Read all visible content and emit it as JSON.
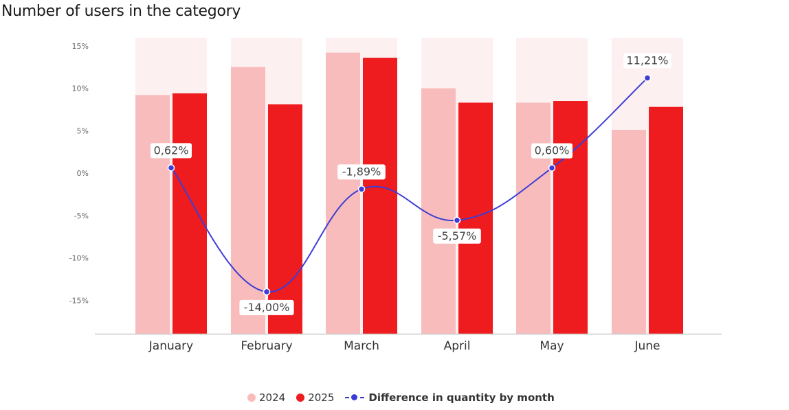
{
  "title": "Number of users in the category",
  "colors": {
    "s2024": "#f9bcbc",
    "s2025": "#ee1c1e",
    "line": "#3d3dd6",
    "bg_band": "#fdf0f0",
    "axis": "#cccccc"
  },
  "chart_data": {
    "type": "bar",
    "categories": [
      "January",
      "February",
      "March",
      "April",
      "May",
      "June"
    ],
    "ylim": [
      -19,
      15.5
    ],
    "yticks": [
      "15%",
      "10%",
      "5%",
      "0%",
      "-5%",
      "-10%",
      "-15%"
    ],
    "ytick_values": [
      15,
      10,
      5,
      0,
      -5,
      -10,
      -15
    ],
    "series": [
      {
        "name": "2024",
        "type": "bar",
        "values": [
          9.2,
          12.5,
          14.2,
          10.0,
          8.3,
          5.1
        ]
      },
      {
        "name": "2025",
        "type": "bar",
        "values": [
          9.4,
          8.1,
          13.6,
          8.3,
          8.5,
          7.8
        ]
      },
      {
        "name": "Difference in quantity by month",
        "type": "line",
        "values": [
          0.62,
          -14.0,
          -1.89,
          -5.57,
          0.6,
          11.21
        ],
        "labels": [
          "0,62%",
          "-14,00%",
          "-1,89%",
          "-5,57%",
          "0,60%",
          "11,21%"
        ]
      }
    ],
    "legend": [
      "2024",
      "2025",
      "Difference in quantity by month"
    ],
    "legend_position": "bottom"
  }
}
